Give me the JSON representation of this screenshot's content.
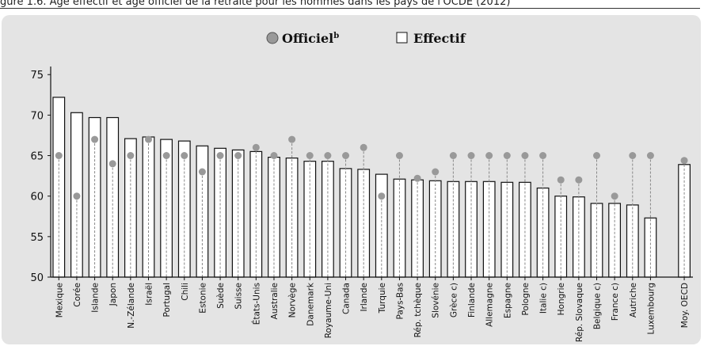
{
  "header": {
    "caption": "gure 1.6. Âge effectif et âge officiel de la retraite pour les hommes dans les pays de l'OCDE (2012)"
  },
  "legend": {
    "official_label": "Officiel",
    "official_superscript": "b",
    "effective_label": "Effectif"
  },
  "colors": {
    "panel_background": "#e4e4e4",
    "bar_fill": "#ffffff",
    "bar_stroke": "#111111",
    "official_marker": "#999999",
    "dashed_line": "#888888"
  },
  "chart_data": {
    "type": "bar",
    "xlabel": "",
    "ylabel": "",
    "ylim": [
      50,
      76
    ],
    "yticks": [
      50,
      55,
      60,
      65,
      70,
      75
    ],
    "grid": false,
    "legend_position": "top-center",
    "categories": [
      "Mexique",
      "Corée",
      "Islande",
      "Japon",
      "N.-Zélande",
      "Israël",
      "Portugal",
      "Chili",
      "Estonie",
      "Suède",
      "Suisse",
      "États-Unis",
      "Australie",
      "Norvège",
      "Danemark",
      "Royaume-Uni",
      "Canada",
      "Irlande",
      "Turquie",
      "Pays-Bas",
      "Rép. tchèque",
      "Slovénie",
      "Grèce c)",
      "Finlande",
      "Allemagne",
      "Espagne",
      "Pologne",
      "Italie c)",
      "Hongrie",
      "Rép. Slovaque",
      "Belgique c)",
      "France c)",
      "Autriche",
      "Luxembourg",
      "Moy. OECD"
    ],
    "series": [
      {
        "name": "Effectif",
        "values": [
          72.2,
          70.3,
          69.7,
          69.7,
          67.1,
          67.3,
          67.0,
          66.8,
          66.2,
          65.9,
          65.7,
          65.5,
          64.8,
          64.7,
          64.3,
          64.3,
          63.4,
          63.3,
          62.7,
          62.1,
          62.0,
          61.9,
          61.8,
          61.8,
          61.8,
          61.7,
          61.7,
          61.0,
          60.0,
          59.9,
          59.1,
          59.1,
          58.9,
          57.3,
          63.9
        ]
      },
      {
        "name": "Officiel",
        "values": [
          65,
          60,
          67,
          64,
          65,
          67,
          65,
          65,
          63,
          65,
          65,
          66,
          65,
          67,
          65,
          65,
          65,
          66,
          60,
          65,
          62.2,
          63,
          65,
          65,
          65,
          65,
          65,
          65,
          62,
          62,
          65,
          60,
          65,
          65,
          64.4
        ]
      }
    ]
  }
}
